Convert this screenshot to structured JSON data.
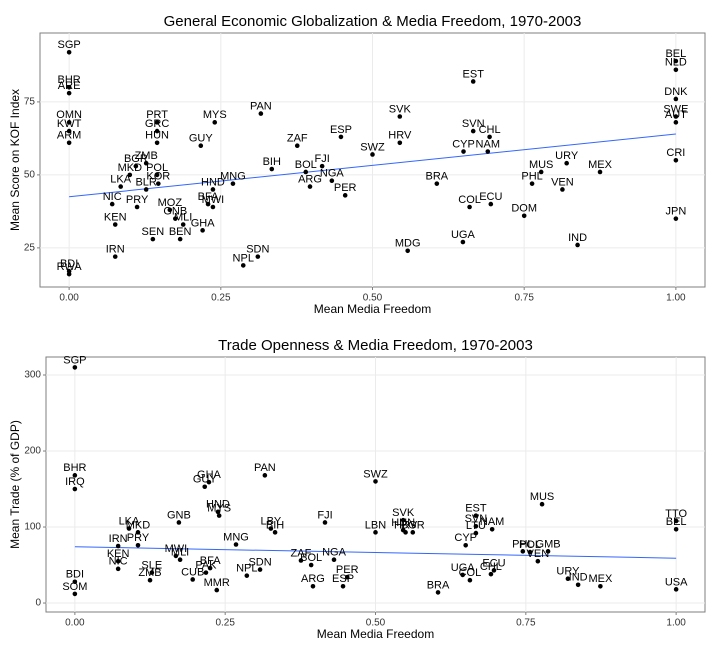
{
  "chart_data": [
    {
      "type": "scatter",
      "title": "General Economic Globalization & Media Freedom, 1970-2003",
      "x_label": "Mean Media Freedom",
      "y_label": "Mean Score on KOF Index",
      "labels": [
        "SGP",
        "BHR",
        "ARE",
        "OMN",
        "KWT",
        "ARM",
        "BDI",
        "RWA",
        "ZMB",
        "PRT",
        "GRC",
        "HUN",
        "MYS",
        "PAN",
        "SVK",
        "EST",
        "ESP",
        "ZAF",
        "GUY",
        "SVN",
        "CHL",
        "CYP",
        "NAM",
        "HRV",
        "SWZ",
        "BIH",
        "BOL",
        "FJI",
        "NGA",
        "ARG",
        "PER",
        "MNG",
        "HND",
        "BRA",
        "MUS",
        "URY",
        "MEX",
        "PHL",
        "VEN",
        "COL",
        "ECU",
        "DOM",
        "JPN",
        "IND",
        "UGA",
        "MDG",
        "MOZ",
        "GNB",
        "BFA",
        "MWI",
        "MLI",
        "GHA",
        "BEN",
        "SEN",
        "SDN",
        "NPL",
        "IRN",
        "KEN",
        "NIC",
        "PRY",
        "MKD",
        "POL",
        "KOR",
        "BGR",
        "LKA",
        "BLR",
        "BEL",
        "NLD",
        "DNK",
        "SWE",
        "AUT",
        "CRI"
      ],
      "x": [
        0,
        0,
        0,
        0,
        0,
        0,
        0,
        0,
        0.127,
        0.145,
        0.145,
        0.145,
        0.24,
        0.316,
        0.545,
        0.666,
        0.448,
        0.376,
        0.217,
        0.666,
        0.693,
        0.65,
        0.69,
        0.545,
        0.5,
        0.334,
        0.39,
        0.417,
        0.433,
        0.397,
        0.455,
        0.27,
        0.237,
        0.606,
        0.778,
        0.82,
        0.875,
        0.763,
        0.813,
        0.66,
        0.695,
        0.75,
        1,
        0.838,
        0.649,
        0.558,
        0.166,
        0.175,
        0.229,
        0.237,
        0.188,
        0.22,
        0.183,
        0.138,
        0.311,
        0.287,
        0.076,
        0.076,
        0.071,
        0.112,
        0.1,
        0.145,
        0.147,
        0.11,
        0.085,
        0.127,
        1,
        1,
        1,
        1,
        1,
        1
      ],
      "values": [
        92,
        80,
        78,
        68,
        65,
        61,
        17,
        16,
        54,
        68,
        65,
        61,
        68,
        71,
        70,
        82,
        63,
        60,
        60,
        65,
        63,
        58,
        58,
        61,
        57,
        52,
        51,
        53,
        48,
        46,
        43,
        47,
        45,
        47,
        51,
        54,
        51,
        47,
        45,
        39,
        40,
        36,
        35,
        26,
        27,
        24,
        38,
        35,
        40,
        39,
        33,
        31,
        28,
        28,
        22,
        19,
        22,
        33,
        40,
        39,
        50,
        50,
        47,
        53,
        46,
        45,
        89,
        86,
        76,
        70,
        68,
        55
      ],
      "xlim": [
        -0.048,
        1.048
      ],
      "ylim": [
        11.6,
        98.6
      ],
      "xticks": [
        {
          "value": 0,
          "label": "0.00"
        },
        {
          "value": 0.25,
          "label": "0.25"
        },
        {
          "value": 0.5,
          "label": "0.50"
        },
        {
          "value": 0.75,
          "label": "0.75"
        },
        {
          "value": 1,
          "label": "1.00"
        }
      ],
      "yticks": [
        25,
        50,
        75
      ],
      "trend": {
        "x": [
          0,
          1
        ],
        "values": [
          42.5,
          64
        ],
        "color": "#3366ff"
      },
      "color": "#000000",
      "grid": true
    },
    {
      "type": "scatter",
      "title": "Trade Openness & Media Freedom, 1970-2003",
      "x_label": "Mean Media Freedom",
      "y_label": "Mean Trade (% of GDP)",
      "labels": [
        "SGP",
        "BHR",
        "IRQ",
        "SOM",
        "BDI",
        "GHA",
        "GUY",
        "PAN",
        "SWZ",
        "MUS",
        "HND",
        "MYS",
        "GNB",
        "FJI",
        "SVK",
        "EST",
        "SVN",
        "NAM",
        "LTU",
        "HUN",
        "HRV",
        "BGR",
        "LBN",
        "LBY",
        "BIH",
        "LKA",
        "MKD",
        "CYP",
        "MNG",
        "PHL",
        "POL",
        "GMB",
        "VEN",
        "ECU",
        "CHL",
        "UGA",
        "COL",
        "URY",
        "IND",
        "MEX",
        "BRA",
        "ARG",
        "ESP",
        "PER",
        "NGA",
        "ZAF",
        "BOL",
        "SDN",
        "NPL",
        "MMR",
        "BFA",
        "PAK",
        "CUB",
        "KEN",
        "NIC",
        "IRN",
        "PRY",
        "ZMB",
        "SLE",
        "MLI",
        "MWI",
        "TTO",
        "BEL",
        "USA"
      ],
      "x": [
        0,
        0,
        0,
        0,
        0,
        0.223,
        0.216,
        0.316,
        0.5,
        0.777,
        0.238,
        0.24,
        0.173,
        0.416,
        0.546,
        0.667,
        0.667,
        0.694,
        0.667,
        0.546,
        0.55,
        0.562,
        0.5,
        0.326,
        0.333,
        0.09,
        0.105,
        0.65,
        0.268,
        0.745,
        0.757,
        0.787,
        0.77,
        0.697,
        0.692,
        0.645,
        0.657,
        0.82,
        0.837,
        0.874,
        0.604,
        0.396,
        0.446,
        0.453,
        0.431,
        0.376,
        0.393,
        0.308,
        0.286,
        0.236,
        0.225,
        0.218,
        0.196,
        0.072,
        0.072,
        0.072,
        0.105,
        0.125,
        0.128,
        0.175,
        0.168,
        1,
        1,
        1
      ],
      "values": [
        310,
        168,
        150,
        12,
        28,
        159,
        153,
        168,
        160,
        130,
        120,
        115,
        106,
        106,
        109,
        115,
        101,
        97,
        92,
        96,
        93,
        93,
        93,
        98,
        93,
        98,
        93,
        76,
        77,
        68,
        67,
        68,
        55,
        43,
        38,
        37,
        30,
        32,
        24,
        22,
        14,
        22,
        22,
        34,
        57,
        56,
        50,
        44,
        36,
        17,
        46,
        40,
        31,
        55,
        45,
        75,
        76,
        30,
        40,
        57,
        62,
        108,
        97,
        18
      ],
      "xlim": [
        -0.048,
        1.048
      ],
      "ylim": [
        -11.8,
        323.7
      ],
      "xticks": [
        {
          "value": 0,
          "label": "0.00"
        },
        {
          "value": 0.25,
          "label": "0.25"
        },
        {
          "value": 0.5,
          "label": "0.50"
        },
        {
          "value": 0.75,
          "label": "0.75"
        },
        {
          "value": 1,
          "label": "1.00"
        }
      ],
      "yticks": [
        0,
        100,
        200,
        300
      ],
      "trend": {
        "x": [
          0,
          1
        ],
        "values": [
          74,
          59
        ],
        "color": "#3366ff"
      },
      "color": "#000000",
      "grid": true
    }
  ]
}
